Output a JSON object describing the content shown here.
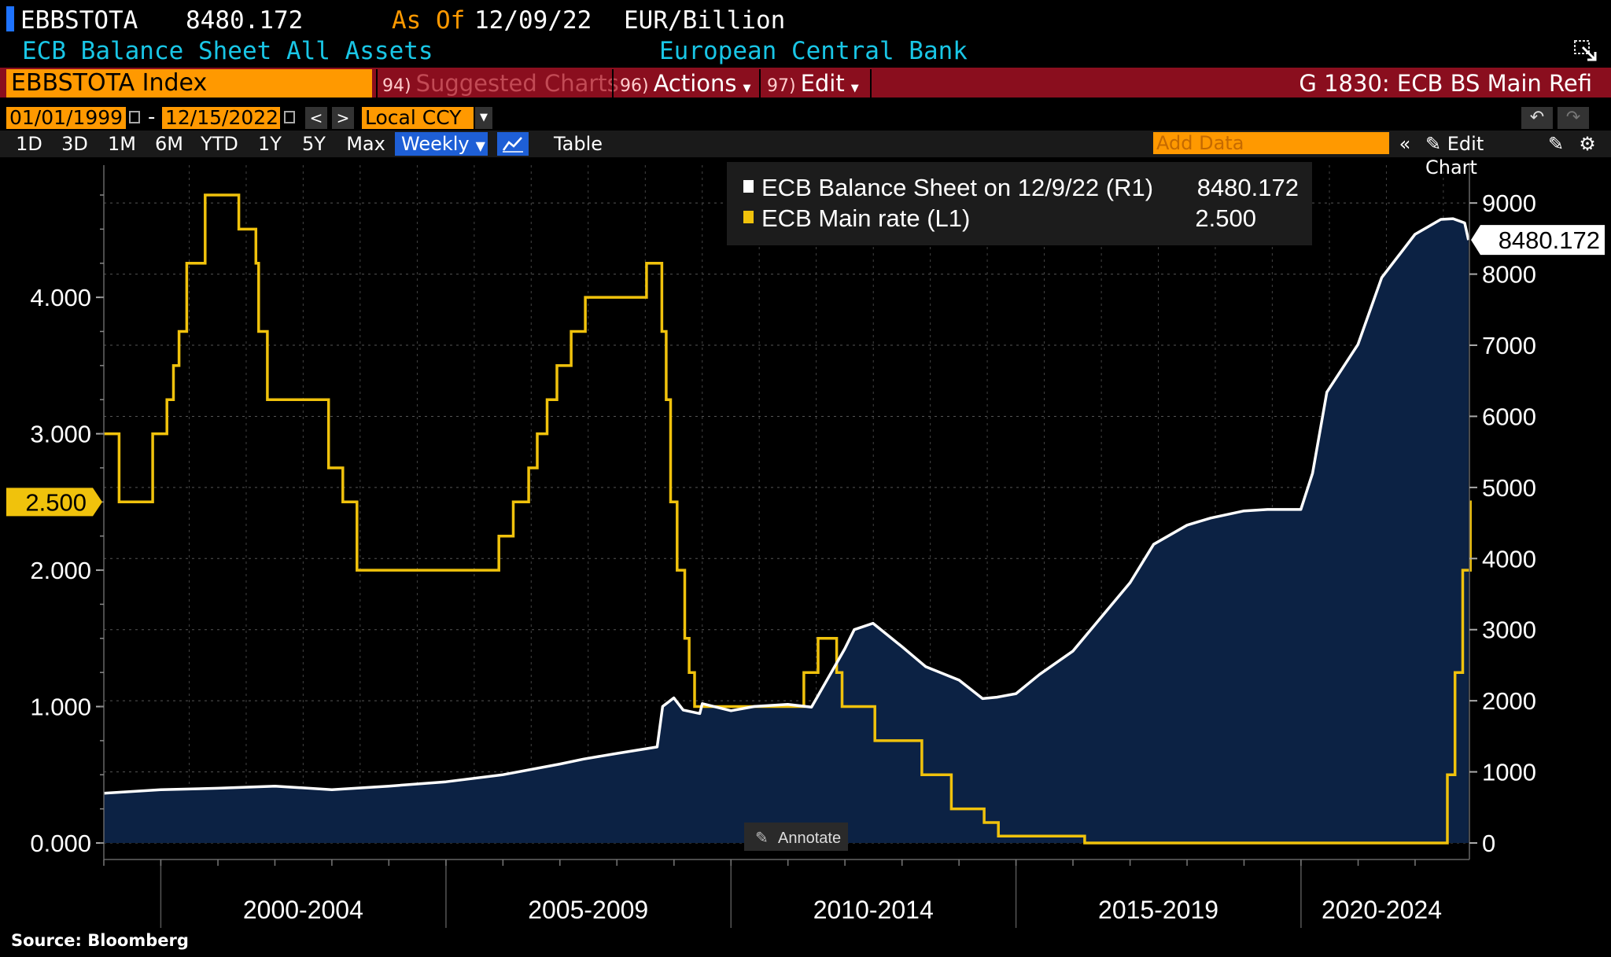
{
  "header": {
    "ticker": "EBBSTOTA",
    "last_value": "8480.172",
    "as_of_label": "As Of",
    "as_of_date": "12/09/22",
    "unit": "EUR/Billion",
    "description": "ECB Balance Sheet All Assets",
    "source_name": "European Central Bank"
  },
  "command_bar": {
    "input_value": "EBBSTOTA Index",
    "items": [
      {
        "num": "94)",
        "label": "Suggested Charts"
      },
      {
        "num": "96)",
        "label": "Actions"
      },
      {
        "num": "97)",
        "label": "Edit"
      }
    ],
    "right_label": "G 1830: ECB BS Main Refi"
  },
  "date_range": {
    "start": "01/01/1999",
    "dash": "-",
    "end": "12/15/2022",
    "currency": "Local CCY"
  },
  "range_bar": {
    "buttons": [
      "1D",
      "3D",
      "1M",
      "6M",
      "YTD",
      "1Y",
      "5Y",
      "Max"
    ],
    "frequency": "Weekly",
    "table_label": "Table",
    "add_data_placeholder": "Add Data",
    "edit_chart_label": "Edit Chart"
  },
  "colors": {
    "balance_line": "#ffffff",
    "balance_fill": "#0c2244",
    "rate_line": "#f0c20c",
    "accent_orange": "#ff9900",
    "command_bar_red": "#8a0e1e"
  },
  "legend": [
    {
      "label": "ECB Balance Sheet on 12/9/22 (R1)",
      "value": "8480.172",
      "color": "#ffffff"
    },
    {
      "label": "ECB Main rate (L1)",
      "value": "2.500",
      "color": "#f0c20c"
    }
  ],
  "annotate_label": "Annotate",
  "source_note": "Source: Bloomberg",
  "chart_data": {
    "type": "line",
    "x_range": [
      "1999-01-01",
      "2022-12-15"
    ],
    "x_tick_labels": [
      "2000-2004",
      "2005-2009",
      "2010-2014",
      "2015-2019",
      "2020-2024"
    ],
    "left_axis": {
      "ticks": [
        "0.000",
        "1.000",
        "2.000",
        "3.000",
        "4.000"
      ],
      "range": [
        0,
        4.9
      ],
      "highlight": "2.500"
    },
    "right_axis": {
      "ticks": [
        "0",
        "1000",
        "2000",
        "3000",
        "4000",
        "5000",
        "6000",
        "7000",
        "8000",
        "9000"
      ],
      "range": [
        0,
        9400
      ],
      "highlight": "8480.172"
    },
    "series": [
      {
        "name": "ECB Balance Sheet on 12/9/22 (R1)",
        "axis": "right",
        "style": "area",
        "x": [
          "1999-01-01",
          "2000-01-01",
          "2001-01-01",
          "2002-01-01",
          "2003-01-01",
          "2004-01-01",
          "2005-01-01",
          "2006-01-01",
          "2007-01-01",
          "2007-06-01",
          "2008-01-01",
          "2008-09-15",
          "2008-10-20",
          "2008-12-31",
          "2009-03-01",
          "2009-06-15",
          "2009-07-01",
          "2010-01-01",
          "2010-06-01",
          "2010-12-31",
          "2011-06-01",
          "2011-12-31",
          "2012-03-01",
          "2012-06-29",
          "2013-01-01",
          "2013-06-01",
          "2014-01-01",
          "2014-06-01",
          "2014-09-01",
          "2015-01-01",
          "2015-06-01",
          "2016-01-01",
          "2016-06-01",
          "2017-01-01",
          "2017-06-01",
          "2018-01-01",
          "2018-06-01",
          "2019-01-01",
          "2019-06-01",
          "2019-12-31",
          "2020-03-15",
          "2020-06-15",
          "2020-12-31",
          "2021-06-01",
          "2021-12-31",
          "2022-06-15",
          "2022-09-01",
          "2022-11-15",
          "2022-12-09"
        ],
        "y": [
          700,
          750,
          770,
          800,
          750,
          800,
          860,
          960,
          1110,
          1180,
          1260,
          1350,
          1920,
          2040,
          1870,
          1820,
          1960,
          1860,
          1920,
          1950,
          1910,
          2730,
          3000,
          3090,
          2760,
          2480,
          2290,
          2030,
          2050,
          2100,
          2370,
          2700,
          3100,
          3660,
          4200,
          4470,
          4570,
          4670,
          4690,
          4690,
          5200,
          6340,
          7010,
          7950,
          8560,
          8770,
          8780,
          8720,
          8480.172
        ]
      },
      {
        "name": "ECB Main rate (L1)",
        "axis": "left",
        "style": "step",
        "x": [
          "1999-01-01",
          "1999-04-09",
          "1999-11-10",
          "2000-02-09",
          "2000-03-22",
          "2000-04-27",
          "2000-06-15",
          "2000-10-11",
          "2001-05-15",
          "2001-09-01",
          "2001-09-19",
          "2001-11-14",
          "2002-12-11",
          "2003-03-12",
          "2003-06-11",
          "2005-12-06",
          "2006-03-08",
          "2006-06-15",
          "2006-08-09",
          "2006-10-11",
          "2006-12-13",
          "2007-03-14",
          "2007-06-13",
          "2008-07-09",
          "2008-10-15",
          "2008-11-12",
          "2008-12-10",
          "2009-01-21",
          "2009-03-11",
          "2009-04-08",
          "2009-05-13",
          "2011-04-13",
          "2011-07-13",
          "2011-11-09",
          "2011-12-14",
          "2012-07-11",
          "2013-05-08",
          "2013-11-13",
          "2014-06-11",
          "2014-09-10",
          "2016-03-16",
          "2022-07-27",
          "2022-09-14",
          "2022-11-02",
          "2022-12-21"
        ],
        "y": [
          3.0,
          2.5,
          3.0,
          3.25,
          3.5,
          3.75,
          4.25,
          4.75,
          4.5,
          4.25,
          3.75,
          3.25,
          2.75,
          2.5,
          2.0,
          2.25,
          2.5,
          2.75,
          3.0,
          3.25,
          3.5,
          3.75,
          4.0,
          4.25,
          3.75,
          3.25,
          2.5,
          2.0,
          1.5,
          1.25,
          1.0,
          1.25,
          1.5,
          1.25,
          1.0,
          0.75,
          0.5,
          0.25,
          0.15,
          0.05,
          0.0,
          0.5,
          1.25,
          2.0,
          2.5
        ]
      }
    ]
  }
}
